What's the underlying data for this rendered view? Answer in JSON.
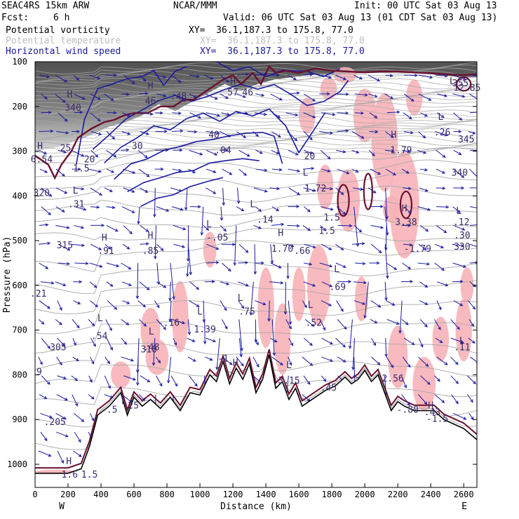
{
  "header": {
    "model": "SEAC4RS 15km ARW",
    "org": "NCAR/MMM",
    "init": "Init: 00 UTC Sat 03 Aug 13",
    "fcst_label": "Fcst:",
    "fcst_value": "6 h",
    "valid": "Valid: 06 UTC Sat 03 Aug 13 (01 CDT Sat 03 Aug 13)",
    "fields": [
      {
        "name": "Potential vorticity",
        "xy": "XY=  36.1,187.3 to 175.8, 77.0"
      },
      {
        "name": "Potential temperature",
        "xy": "XY=  36.1,187.3 to 175.8, 77.0"
      },
      {
        "name": "Horizontal wind speed",
        "xy": "XY=  36.1,187.3 to 175.8, 77.0"
      }
    ]
  },
  "colors": {
    "pv_fill": "#f7b3b8",
    "pv_contour": "#6b1030",
    "theta_contour": "#a8a8a8",
    "wind_contour": "#1a1aa0",
    "wind_vector": "#1a1aa0",
    "terrain": "#000000"
  },
  "chart_data": {
    "type": "cross-section",
    "xlabel": "Distance (km)",
    "ylabel": "Pressure (hPa)",
    "xlim": [
      0,
      2680
    ],
    "ylim": [
      1050,
      100
    ],
    "x_ticks": [
      0,
      200,
      400,
      600,
      800,
      1000,
      1200,
      1400,
      1600,
      1800,
      2000,
      2200,
      2400,
      2600
    ],
    "y_ticks": [
      100,
      200,
      300,
      400,
      500,
      600,
      700,
      800,
      900,
      1000
    ],
    "end_labels": {
      "left": "W",
      "right": "E"
    },
    "terrain_profile": {
      "x": [
        0,
        200,
        280,
        330,
        380,
        450,
        520,
        560,
        600,
        650,
        700,
        760,
        820,
        880,
        940,
        1000,
        1060,
        1100,
        1140,
        1180,
        1220,
        1260,
        1300,
        1340,
        1380,
        1420,
        1460,
        1500,
        1540,
        1580,
        1620,
        1660,
        1700,
        1760,
        1820,
        1880,
        1920,
        1960,
        2000,
        2040,
        2080,
        2120,
        2160,
        2200,
        2240,
        2300,
        2360,
        2420,
        2480,
        2540,
        2600,
        2680
      ],
      "p": [
        1020,
        1020,
        1010,
        960,
        890,
        870,
        840,
        890,
        850,
        870,
        855,
        875,
        850,
        880,
        840,
        845,
        800,
        815,
        770,
        820,
        785,
        810,
        775,
        840,
        810,
        755,
        830,
        815,
        855,
        830,
        870,
        860,
        850,
        835,
        825,
        805,
        820,
        810,
        790,
        815,
        800,
        840,
        880,
        860,
        870,
        880,
        880,
        880,
        900,
        910,
        920,
        945
      ]
    },
    "labels_on_plot": [
      {
        "text": "H",
        "x": 205,
        "p": 1000
      },
      {
        "text": "1.6",
        "x": 210,
        "p": 1030
      },
      {
        "text": "1.5",
        "x": 330,
        "p": 1030
      },
      {
        "text": ".205",
        "x": 120,
        "p": 912
      },
      {
        "text": "9",
        "x": 25,
        "p": 800
      },
      {
        "text": "305",
        "x": 140,
        "p": 745
      },
      {
        "text": "L",
        "x": 395,
        "p": 680
      },
      {
        "text": ".54",
        "x": 390,
        "p": 720
      },
      {
        "text": ".21",
        "x": 20,
        "p": 625
      },
      {
        "text": "315",
        "x": 180,
        "p": 517
      },
      {
        "text": "H",
        "x": 420,
        "p": 500
      },
      {
        "text": ".91",
        "x": 430,
        "p": 530
      },
      {
        "text": "320",
        "x": 40,
        "p": 400
      },
      {
        "text": "L",
        "x": 245,
        "p": 395
      },
      {
        "text": ".31",
        "x": 250,
        "p": 425
      },
      {
        "text": "1.5",
        "x": 280,
        "p": 345
      },
      {
        "text": "H",
        "x": 30,
        "p": 295
      },
      {
        "text": "6.54",
        "x": 40,
        "p": 325
      },
      {
        "text": "25",
        "x": 185,
        "p": 300
      },
      {
        "text": "20",
        "x": 330,
        "p": 325
      },
      {
        "text": "H",
        "x": 210,
        "p": 180
      },
      {
        "text": "340",
        "x": 230,
        "p": 210
      },
      {
        "text": "30",
        "x": 620,
        "p": 295
      },
      {
        "text": "H",
        "x": 700,
        "p": 160
      },
      {
        "text": "46",
        "x": 700,
        "p": 195
      },
      {
        "text": ".48",
        "x": 870,
        "p": 185
      },
      {
        "text": "H",
        "x": 1200,
        "p": 150
      },
      {
        "text": "57",
        "x": 1200,
        "p": 175
      },
      {
        "text": "46",
        "x": 1290,
        "p": 175
      },
      {
        "text": "40",
        "x": 1085,
        "p": 270
      },
      {
        "text": ".04",
        "x": 1140,
        "p": 305
      },
      {
        "text": "20",
        "x": 1665,
        "p": 318
      },
      {
        "text": "L",
        "x": 1640,
        "p": 355
      },
      {
        "text": "1.72",
        "x": 1700,
        "p": 390
      },
      {
        "text": "L",
        "x": 1320,
        "p": 425
      },
      {
        "text": ".14",
        "x": 1395,
        "p": 460
      },
      {
        "text": "1.5",
        "x": 1800,
        "p": 455
      },
      {
        "text": "1.5",
        "x": 1770,
        "p": 485
      },
      {
        "text": "L",
        "x": 1055,
        "p": 470
      },
      {
        "text": "-.05",
        "x": 1105,
        "p": 500
      },
      {
        "text": "H",
        "x": 700,
        "p": 495
      },
      {
        "text": ".85",
        "x": 700,
        "p": 530
      },
      {
        "text": "H",
        "x": 1490,
        "p": 490
      },
      {
        "text": "1.70",
        "x": 1500,
        "p": 525
      },
      {
        "text": ".66",
        "x": 1620,
        "p": 530
      },
      {
        "text": "L",
        "x": 1830,
        "p": 570
      },
      {
        "text": ".69",
        "x": 1835,
        "p": 610
      },
      {
        "text": "L",
        "x": 1245,
        "p": 635
      },
      {
        "text": ".75",
        "x": 1285,
        "p": 665
      },
      {
        "text": "-.16",
        "x": 810,
        "p": 690
      },
      {
        "text": "L",
        "x": 1000,
        "p": 665
      },
      {
        "text": "1.39",
        "x": 1030,
        "p": 705
      },
      {
        "text": "L",
        "x": 1670,
        "p": 650
      },
      {
        "text": ".52",
        "x": 1690,
        "p": 690
      },
      {
        "text": "L",
        "x": 705,
        "p": 710
      },
      {
        "text": ".48",
        "x": 705,
        "p": 745
      },
      {
        "text": "310",
        "x": 690,
        "p": 750
      },
      {
        "text": "H",
        "x": 1215,
        "p": 780
      },
      {
        "text": "-1",
        "x": 1140,
        "p": 770
      },
      {
        "text": "L",
        "x": 1540,
        "p": 785
      },
      {
        "text": "3.15",
        "x": 1540,
        "p": 820
      },
      {
        "text": "355",
        "x": 2580,
        "p": 155
      },
      {
        "text": "L",
        "x": 2530,
        "p": 150
      },
      {
        "text": "12.85",
        "x": 2620,
        "p": 165
      },
      {
        "text": "L",
        "x": 2460,
        "p": 230
      },
      {
        "text": ".26",
        "x": 2470,
        "p": 265
      },
      {
        "text": "345",
        "x": 2615,
        "p": 280
      },
      {
        "text": "H",
        "x": 2175,
        "p": 270
      },
      {
        "text": "1.79",
        "x": 2220,
        "p": 305
      },
      {
        "text": "340",
        "x": 2575,
        "p": 355
      },
      {
        "text": "H",
        "x": 2240,
        "p": 435
      },
      {
        "text": "3.38",
        "x": 2250,
        "p": 465
      },
      {
        "text": "L",
        "x": 2570,
        "p": 440
      },
      {
        "text": ".12",
        "x": 2585,
        "p": 465
      },
      {
        "text": ".30",
        "x": 2590,
        "p": 495
      },
      {
        "text": "330",
        "x": 2590,
        "p": 520
      },
      {
        "text": "-1.79",
        "x": 2320,
        "p": 525
      },
      {
        "text": "L",
        "x": 2590,
        "p": 730
      },
      {
        "text": ".11",
        "x": 2590,
        "p": 745
      },
      {
        "text": "2.56",
        "x": 2170,
        "p": 815
      },
      {
        "text": ".25",
        "x": 580,
        "p": 875
      },
      {
        "text": "L",
        "x": 540,
        "p": 865
      },
      {
        "text": "-.5",
        "x": 450,
        "p": 885
      },
      {
        "text": ".45",
        "x": 1780,
        "p": 835
      },
      {
        "text": "-.80",
        "x": 2260,
        "p": 885
      },
      {
        "text": "H",
        "x": 2400,
        "p": 875
      },
      {
        "text": ".43",
        "x": 2410,
        "p": 890
      },
      {
        "text": "-1.5",
        "x": 2440,
        "p": 905
      }
    ]
  }
}
